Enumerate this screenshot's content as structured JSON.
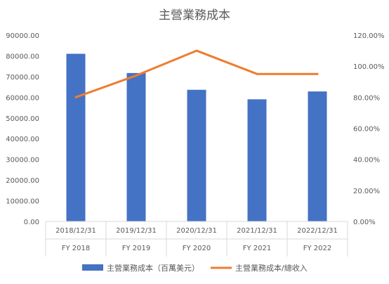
{
  "chart_data": {
    "type": "bar",
    "title": "主營業務成本",
    "categories": [
      {
        "date": "2018/12/31",
        "fy": "FY 2018"
      },
      {
        "date": "2019/12/31",
        "fy": "FY 2019"
      },
      {
        "date": "2020/12/31",
        "fy": "FY 2020"
      },
      {
        "date": "2021/12/31",
        "fy": "FY 2021"
      },
      {
        "date": "2022/12/31",
        "fy": "FY 2022"
      }
    ],
    "series": [
      {
        "name": "主營業務成本（百萬美元）",
        "type": "bar",
        "axis": "left",
        "color": "#4472C4",
        "values": [
          81000,
          71700,
          63600,
          59000,
          62800
        ]
      },
      {
        "name": "主營業務成本/總收入",
        "type": "line",
        "axis": "right",
        "color": "#ED7D31",
        "values": [
          0.8,
          0.94,
          1.1,
          0.95,
          0.95
        ]
      }
    ],
    "left_axis": {
      "min": 0,
      "max": 90000,
      "step": 10000,
      "ticks": [
        "0.00",
        "10000.00",
        "20000.00",
        "30000.00",
        "40000.00",
        "50000.00",
        "60000.00",
        "70000.00",
        "80000.00",
        "90000.00"
      ]
    },
    "right_axis": {
      "min": 0,
      "max": 1.2,
      "step": 0.2,
      "ticks": [
        "0.00%",
        "20.00%",
        "40.00%",
        "60.00%",
        "80.00%",
        "100.00%",
        "120.00%"
      ]
    },
    "legend_position": "bottom",
    "grid": false
  }
}
